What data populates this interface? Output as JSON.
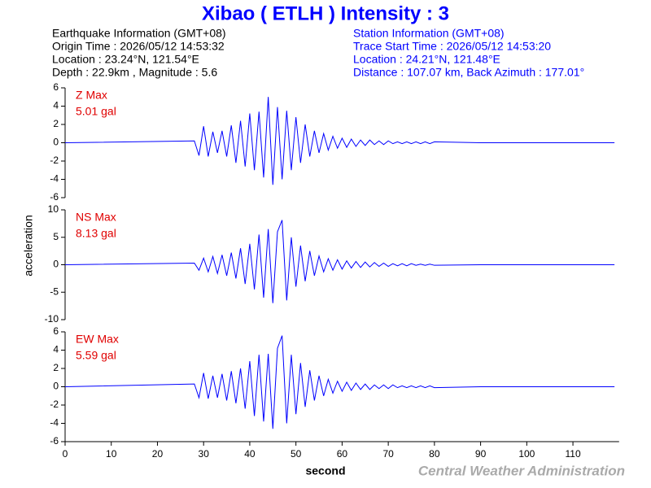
{
  "header": {
    "title": "Xibao ( ETLH ) Intensity : 3",
    "eq_info": [
      "Earthquake Information  (GMT+08)",
      "Origin Time : 2026/05/12 14:53:32",
      "Location : 23.24°N, 121.54°E",
      "Depth : 22.9km , Magnitude : 5.6"
    ],
    "station_info": [
      "Station Information  (GMT+08)",
      "Trace Start Time : 2026/05/12 14:53:20",
      "Location : 24.21°N, 121.48°E",
      "Distance : 107.07 km, Back Azimuth : 177.01°"
    ],
    "ylabel": "acceleration",
    "credit": "Central Weather Administration"
  },
  "chart_data": [
    {
      "type": "line",
      "annotation": [
        "Z Max",
        "5.01 gal"
      ],
      "color": "#0000ff",
      "xlim": [
        0,
        120
      ],
      "ylim": [
        -6,
        6
      ],
      "yticks": [
        -6,
        -4,
        -2,
        0,
        2,
        4,
        6
      ],
      "x": [
        0,
        28,
        29,
        30,
        31,
        32,
        33,
        34,
        35,
        36,
        37,
        38,
        39,
        40,
        41,
        42,
        43,
        44,
        45,
        46,
        47,
        48,
        49,
        50,
        51,
        52,
        53,
        54,
        55,
        56,
        57,
        58,
        59,
        60,
        61,
        62,
        63,
        64,
        65,
        66,
        67,
        68,
        69,
        70,
        71,
        72,
        73,
        74,
        75,
        76,
        77,
        78,
        79,
        80,
        90,
        100,
        119
      ],
      "values": [
        0,
        0.2,
        -1.4,
        1.8,
        -1.5,
        1.2,
        -1.1,
        1.3,
        -1.5,
        1.9,
        -2.2,
        2.4,
        -2.6,
        3.2,
        -3.0,
        3.4,
        -3.8,
        5.01,
        -4.6,
        3.9,
        -4.0,
        3.5,
        -3.0,
        2.8,
        -2.2,
        2.0,
        -1.5,
        1.3,
        -1.1,
        1.0,
        -0.8,
        0.7,
        -0.6,
        0.5,
        -0.5,
        0.4,
        -0.4,
        0.3,
        -0.3,
        0.3,
        -0.2,
        0.2,
        -0.2,
        0.2,
        -0.1,
        0.1,
        -0.1,
        0.1,
        -0.1,
        0.1,
        -0.1,
        0.1,
        -0.1,
        0.1,
        0,
        0,
        0
      ]
    },
    {
      "type": "line",
      "annotation": [
        "NS Max",
        "8.13 gal"
      ],
      "color": "#0000ff",
      "xlim": [
        0,
        120
      ],
      "ylim": [
        -10,
        10
      ],
      "yticks": [
        -10,
        -5,
        0,
        5,
        10
      ],
      "x": [
        0,
        28,
        29,
        30,
        31,
        32,
        33,
        34,
        35,
        36,
        37,
        38,
        39,
        40,
        41,
        42,
        43,
        44,
        45,
        46,
        47,
        48,
        49,
        50,
        51,
        52,
        53,
        54,
        55,
        56,
        57,
        58,
        59,
        60,
        61,
        62,
        63,
        64,
        65,
        66,
        67,
        68,
        69,
        70,
        71,
        72,
        73,
        74,
        75,
        76,
        77,
        78,
        79,
        80,
        90,
        100,
        119
      ],
      "values": [
        0,
        0.3,
        -1.0,
        1.2,
        -1.3,
        1.5,
        -1.6,
        1.8,
        -2.0,
        2.2,
        -2.5,
        3.0,
        -3.5,
        3.8,
        -4.5,
        5.5,
        -6.0,
        6.5,
        -7.0,
        6.0,
        8.13,
        -6.5,
        5.0,
        -4.0,
        3.5,
        -3.0,
        2.5,
        -2.0,
        1.6,
        -1.3,
        1.1,
        -1.0,
        0.9,
        -0.8,
        0.7,
        -0.6,
        0.6,
        -0.5,
        0.5,
        -0.4,
        0.4,
        -0.3,
        0.3,
        -0.3,
        0.2,
        -0.2,
        0.2,
        -0.2,
        0.2,
        -0.1,
        0.1,
        -0.1,
        0.1,
        -0.1,
        0,
        0,
        0
      ]
    },
    {
      "type": "line",
      "annotation": [
        "EW Max",
        "5.59 gal"
      ],
      "color": "#0000ff",
      "xlim": [
        0,
        120
      ],
      "ylim": [
        -6,
        6
      ],
      "yticks": [
        -6,
        -4,
        -2,
        0,
        2,
        4,
        6
      ],
      "xticks": [
        0,
        10,
        20,
        30,
        40,
        50,
        60,
        70,
        80,
        90,
        100,
        110
      ],
      "xlabel": "second",
      "x": [
        0,
        28,
        29,
        30,
        31,
        32,
        33,
        34,
        35,
        36,
        37,
        38,
        39,
        40,
        41,
        42,
        43,
        44,
        45,
        46,
        47,
        48,
        49,
        50,
        51,
        52,
        53,
        54,
        55,
        56,
        57,
        58,
        59,
        60,
        61,
        62,
        63,
        64,
        65,
        66,
        67,
        68,
        69,
        70,
        71,
        72,
        73,
        74,
        75,
        76,
        77,
        78,
        79,
        80,
        90,
        100,
        119
      ],
      "values": [
        0,
        0.3,
        -1.2,
        1.5,
        -1.3,
        1.2,
        -1.2,
        1.4,
        -1.5,
        1.7,
        -1.8,
        2.0,
        -2.4,
        2.8,
        -3.2,
        3.5,
        -3.8,
        3.6,
        -4.6,
        4.2,
        5.59,
        -4.0,
        3.5,
        -3.0,
        2.6,
        -2.2,
        1.8,
        -1.5,
        1.2,
        -1.0,
        0.8,
        -0.7,
        0.6,
        -0.5,
        0.5,
        -0.4,
        0.4,
        -0.3,
        0.3,
        -0.3,
        0.2,
        -0.2,
        0.2,
        -0.2,
        0.2,
        -0.1,
        0.1,
        -0.1,
        0.1,
        -0.1,
        0.1,
        -0.1,
        0.1,
        -0.1,
        0,
        0,
        0
      ]
    }
  ]
}
